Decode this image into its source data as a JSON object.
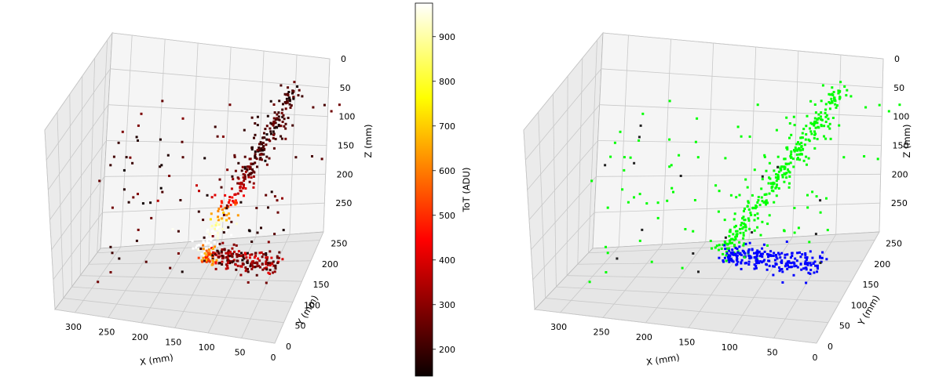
{
  "colors": {
    "pane_left": "#f5f5f5",
    "pane_right": "#ebebeb",
    "pane_floor": "#e6e6e6",
    "grid": "#c8c8c8",
    "edge": "#b8b8b8",
    "cluster_a": "#00ff00",
    "cluster_b": "#0000ff",
    "outlier": "#222222"
  },
  "chart_data": [
    {
      "type": "scatter",
      "dimensions": 3,
      "color_by": "ToT (ADU)",
      "colormap": "hot",
      "xlabel": "X (mm)",
      "ylabel": "Y (mm)",
      "zlabel": "Z (mm)",
      "x_ticks": [
        "300",
        "250",
        "200",
        "150",
        "100",
        "50",
        "0"
      ],
      "y_ticks": [
        "0",
        "50",
        "100",
        "150",
        "200",
        "250"
      ],
      "z_ticks": [
        "0",
        "50",
        "100",
        "150",
        "200",
        "250"
      ],
      "xlim": [
        0,
        330
      ],
      "ylim": [
        0,
        270
      ],
      "zlim": [
        0,
        300
      ],
      "z_inverted": true,
      "grid": true,
      "tracks": [
        {
          "start": [
            150,
            150,
            260
          ],
          "end": [
            40,
            185,
            0
          ],
          "tot_peak": 950
        },
        {
          "start": [
            150,
            150,
            260
          ],
          "end": [
            40,
            150,
            275
          ],
          "tot_peak": 450
        }
      ]
    },
    {
      "type": "scatter",
      "dimensions": 3,
      "xlabel": "X (mm)",
      "ylabel": "Y (mm)",
      "zlabel": "Z (mm)",
      "x_ticks": [
        "300",
        "250",
        "200",
        "150",
        "100",
        "50",
        "0"
      ],
      "y_ticks": [
        "0",
        "50",
        "100",
        "150",
        "200",
        "250"
      ],
      "z_ticks": [
        "0",
        "50",
        "100",
        "150",
        "200",
        "250"
      ],
      "xlim": [
        0,
        330
      ],
      "ylim": [
        0,
        270
      ],
      "zlim": [
        0,
        300
      ],
      "z_inverted": true,
      "grid": true,
      "tracks": [
        {
          "start": [
            150,
            150,
            260
          ],
          "end": [
            40,
            185,
            0
          ],
          "color": "green"
        },
        {
          "start": [
            150,
            150,
            260
          ],
          "end": [
            40,
            150,
            275
          ],
          "color": "blue"
        }
      ]
    },
    {
      "type": "colorbar",
      "label": "ToT (ADU)",
      "colormap": "hot",
      "range": [
        140,
        975
      ],
      "ticks": [
        200,
        300,
        400,
        500,
        600,
        700,
        800,
        900
      ]
    }
  ]
}
